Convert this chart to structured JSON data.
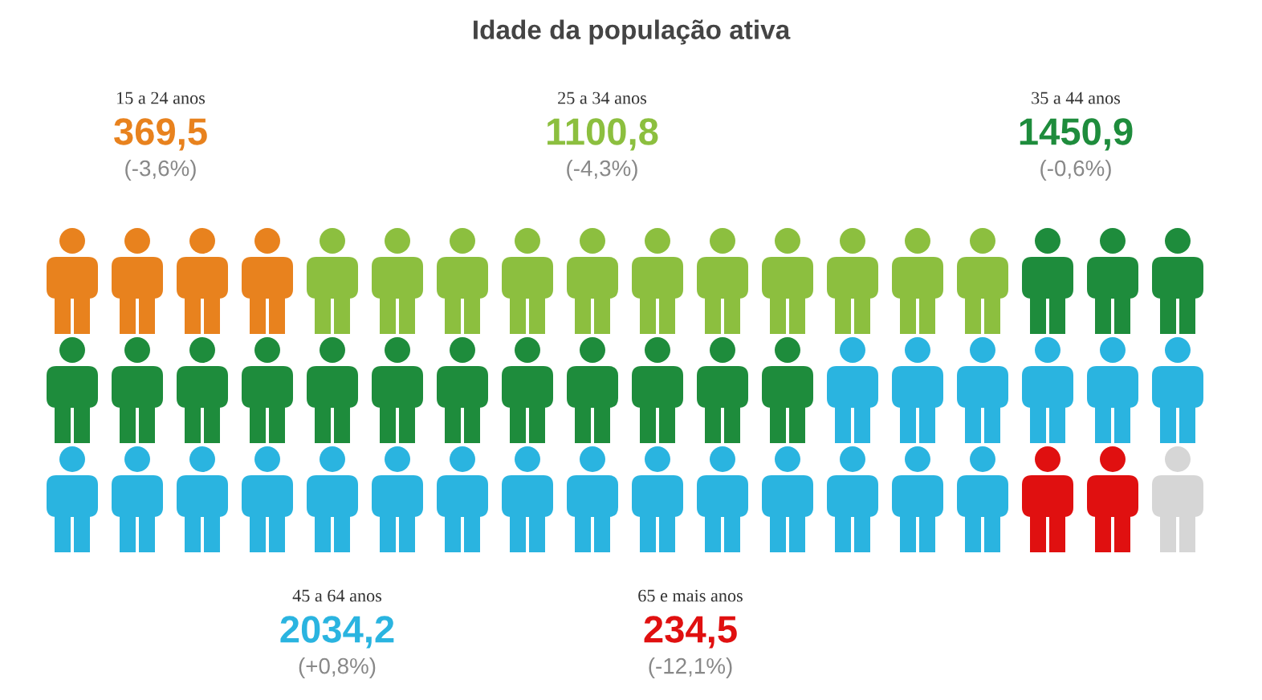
{
  "chart_data": {
    "type": "other",
    "title": "Idade da população ativa",
    "categories": [
      "15 a 24 anos",
      "25 a 34 anos",
      "35 a 44 anos",
      "45 a 64 anos",
      "65 e mais anos"
    ],
    "values": [
      369.5,
      1100.8,
      1450.9,
      2034.2,
      234.5
    ],
    "value_labels": [
      "369,5",
      "1100,8",
      "1450,9",
      "2034,2",
      "234,5"
    ],
    "colors": [
      "#e8821e",
      "#8cbf3f",
      "#1e8c3c",
      "#2ab4e0",
      "#e01010"
    ],
    "annotations": [
      "(-3,6%)",
      "(-4,3%)",
      "(-0,6%)",
      "(+0,8%)",
      "(-12,1%)"
    ]
  }
}
